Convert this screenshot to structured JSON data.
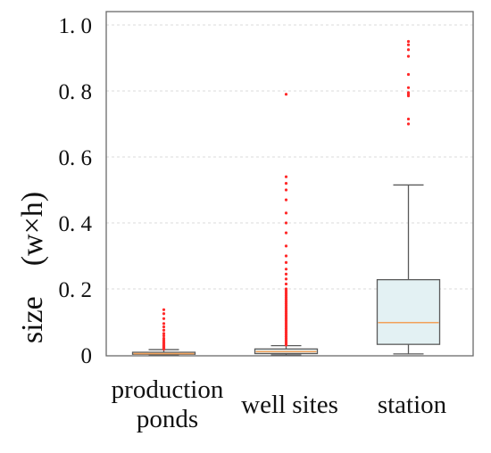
{
  "chart_data": {
    "type": "box",
    "title": "",
    "xlabel": "",
    "ylabel": "size　(w×h)",
    "ylim": [
      0,
      1.0
    ],
    "yticks": [
      0,
      0.2,
      0.4,
      0.6,
      0.8,
      1.0
    ],
    "ytick_labels": [
      "0",
      "0. 2",
      "0. 4",
      "0. 6",
      "0. 8",
      "1. 0"
    ],
    "grid": "horizontal-dashed",
    "colors": {
      "box_fill": "#e3f1f3",
      "box_stroke": "#5a5a5a",
      "median": "#f2a15a",
      "outlier": "#ff2a2a",
      "grid": "#d0d0d0"
    },
    "categories": [
      "production ponds",
      "well sites",
      "station"
    ],
    "category_label_lines": [
      [
        "production",
        "ponds"
      ],
      [
        "well sites"
      ],
      [
        "station"
      ]
    ],
    "boxes": [
      {
        "category": "production ponds",
        "whisker_low": 0.0,
        "q1": 0.002,
        "median": 0.004,
        "q3": 0.008,
        "whisker_high": 0.016,
        "outliers": [
          0.018,
          0.02,
          0.022,
          0.024,
          0.026,
          0.028,
          0.03,
          0.033,
          0.036,
          0.04,
          0.045,
          0.05,
          0.058,
          0.065,
          0.075,
          0.085,
          0.095,
          0.11,
          0.125,
          0.137
        ]
      },
      {
        "category": "well sites",
        "whisker_low": 0.0,
        "q1": 0.004,
        "median": 0.01,
        "q3": 0.018,
        "whisker_high": 0.028,
        "outliers": [
          0.03,
          0.035,
          0.04,
          0.045,
          0.05,
          0.055,
          0.06,
          0.065,
          0.07,
          0.075,
          0.08,
          0.085,
          0.09,
          0.095,
          0.1,
          0.105,
          0.11,
          0.115,
          0.12,
          0.125,
          0.13,
          0.135,
          0.14,
          0.145,
          0.15,
          0.155,
          0.16,
          0.165,
          0.17,
          0.175,
          0.18,
          0.185,
          0.19,
          0.195,
          0.2,
          0.215,
          0.23,
          0.245,
          0.26,
          0.28,
          0.3,
          0.33,
          0.37,
          0.4,
          0.43,
          0.47,
          0.5,
          0.52,
          0.54,
          0.79
        ]
      },
      {
        "category": "station",
        "whisker_low": 0.003,
        "q1": 0.032,
        "median": 0.098,
        "q3": 0.228,
        "whisker_high": 0.515,
        "outliers": [
          0.7,
          0.715,
          0.785,
          0.79,
          0.795,
          0.81,
          0.85,
          0.905,
          0.925,
          0.94,
          0.95
        ]
      }
    ]
  }
}
